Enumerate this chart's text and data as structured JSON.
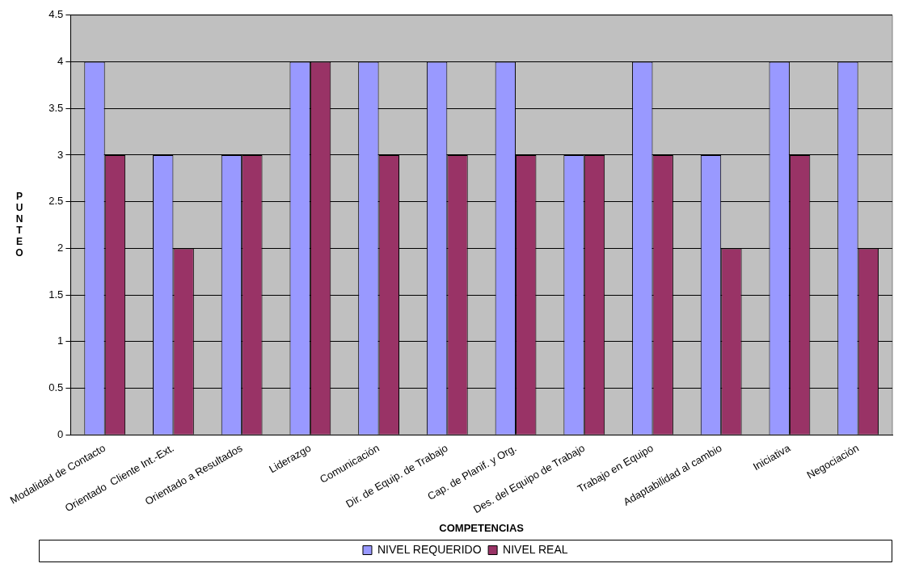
{
  "chart_data": {
    "type": "bar",
    "xlabel": "COMPETENCIAS",
    "ylabel": "PUNTEO",
    "categories": [
      "Modalidad de Contacto",
      "Orientado  Cliente Int.-Ext.",
      "Orientado a Resultados",
      "Liderazgo",
      "Comunicación",
      "Dir. de Equip. de Trabajo",
      "Cap. de Planif. y Org.",
      "Des. del Equipo de Trabajo",
      "Trabajo en Equipo",
      "Adaptabilidad al cambio",
      "Iniciativa",
      "Negociación"
    ],
    "series": [
      {
        "name": "NIVEL REQUERIDO",
        "color": "#9999ff",
        "values": [
          4,
          3,
          3,
          4,
          4,
          4,
          4,
          3,
          4,
          3,
          4,
          4
        ]
      },
      {
        "name": "NIVEL REAL",
        "color": "#993366",
        "values": [
          3,
          2,
          3,
          4,
          3,
          3,
          3,
          3,
          3,
          2,
          3,
          2
        ]
      }
    ],
    "ylim": [
      0,
      4.5
    ],
    "yticks": [
      0,
      0.5,
      1,
      1.5,
      2,
      2.5,
      3,
      3.5,
      4,
      4.5
    ],
    "grid": "y",
    "legend": "bottom"
  }
}
